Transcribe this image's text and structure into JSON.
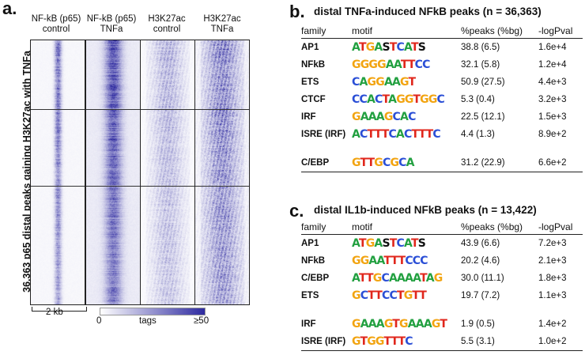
{
  "panel_a": {
    "letter": "a.",
    "columns": [
      {
        "line1": "NF-kB (p65)",
        "line2": "control"
      },
      {
        "line1": "NF-kB (p65)",
        "line2": "TNFa"
      },
      {
        "line1": "H3K27ac",
        "line2": "control"
      },
      {
        "line1": "H3K27ac",
        "line2": "TNFa"
      }
    ],
    "ylabel": "36,363 p65 distal peaks gaining H3K27ac with TNFa",
    "scale_label": "2 kb",
    "colorbar": {
      "min": "0",
      "label": "tags",
      "max": "≥50",
      "low_color": "#ffffff",
      "high_color": "#2e2aa0"
    }
  },
  "panel_b": {
    "letter": "b.",
    "title": "distal TNFa-induced NFkB peaks (n = 36,363)",
    "headers": [
      "family",
      "motif",
      "%peaks (%bg)",
      "-logPval"
    ],
    "rows": [
      {
        "family": "AP1",
        "motif": "ATGASTCATS",
        "pct": "38.8 (6.5)",
        "pval": "1.6e+4"
      },
      {
        "family": "NFkB",
        "motif": "GGGGAATTCC",
        "pct": "32.1 (5.8)",
        "pval": "1.2e+4"
      },
      {
        "family": "ETS",
        "motif": "CAGGAAGT",
        "pct": "50.9 (27.5)",
        "pval": "4.4e+3"
      },
      {
        "family": "CTCF",
        "motif": "CCACTAGGTGGC",
        "pct": "5.3 (0.4)",
        "pval": "3.2e+3"
      },
      {
        "family": "IRF",
        "motif": "GAAAGCAC",
        "pct": "22.5 (12.1)",
        "pval": "1.5e+3"
      },
      {
        "family": "ISRE (IRF)",
        "motif": "ACTTTCACTTTC",
        "pct": "4.4 (1.3)",
        "pval": "8.9e+2"
      },
      {
        "family": "C/EBP",
        "motif": "GTTGCGCA",
        "pct": "31.2 (22.9)",
        "pval": "6.6e+2"
      }
    ]
  },
  "panel_c": {
    "letter": "c.",
    "title": "distal IL1b-induced NFkB peaks (n = 13,422)",
    "headers": [
      "family",
      "motif",
      "%peaks (%bg)",
      "-logPval"
    ],
    "rows": [
      {
        "family": "AP1",
        "motif": "ATGASTCATS",
        "pct": "43.9 (6.6)",
        "pval": "7.2e+3"
      },
      {
        "family": "NFkB",
        "motif": "GGAATTTCCC",
        "pct": "20.2 (4.6)",
        "pval": "2.1e+3"
      },
      {
        "family": "C/EBP",
        "motif": "ATTGCAAAATAG",
        "pct": "30.0 (11.1)",
        "pval": "1.8e+3"
      },
      {
        "family": "ETS",
        "motif": "GCTTCCTGTT",
        "pct": "19.7 (7.2)",
        "pval": "1.1e+3"
      },
      {
        "family": "IRF",
        "motif": "GAAAGTGAAAGT",
        "pct": "1.9 (0.5)",
        "pval": "1.4e+2"
      },
      {
        "family": "ISRE (IRF)",
        "motif": "GTGGTTTC",
        "pct": "5.5 (3.1)",
        "pval": "1.0e+2"
      }
    ]
  }
}
